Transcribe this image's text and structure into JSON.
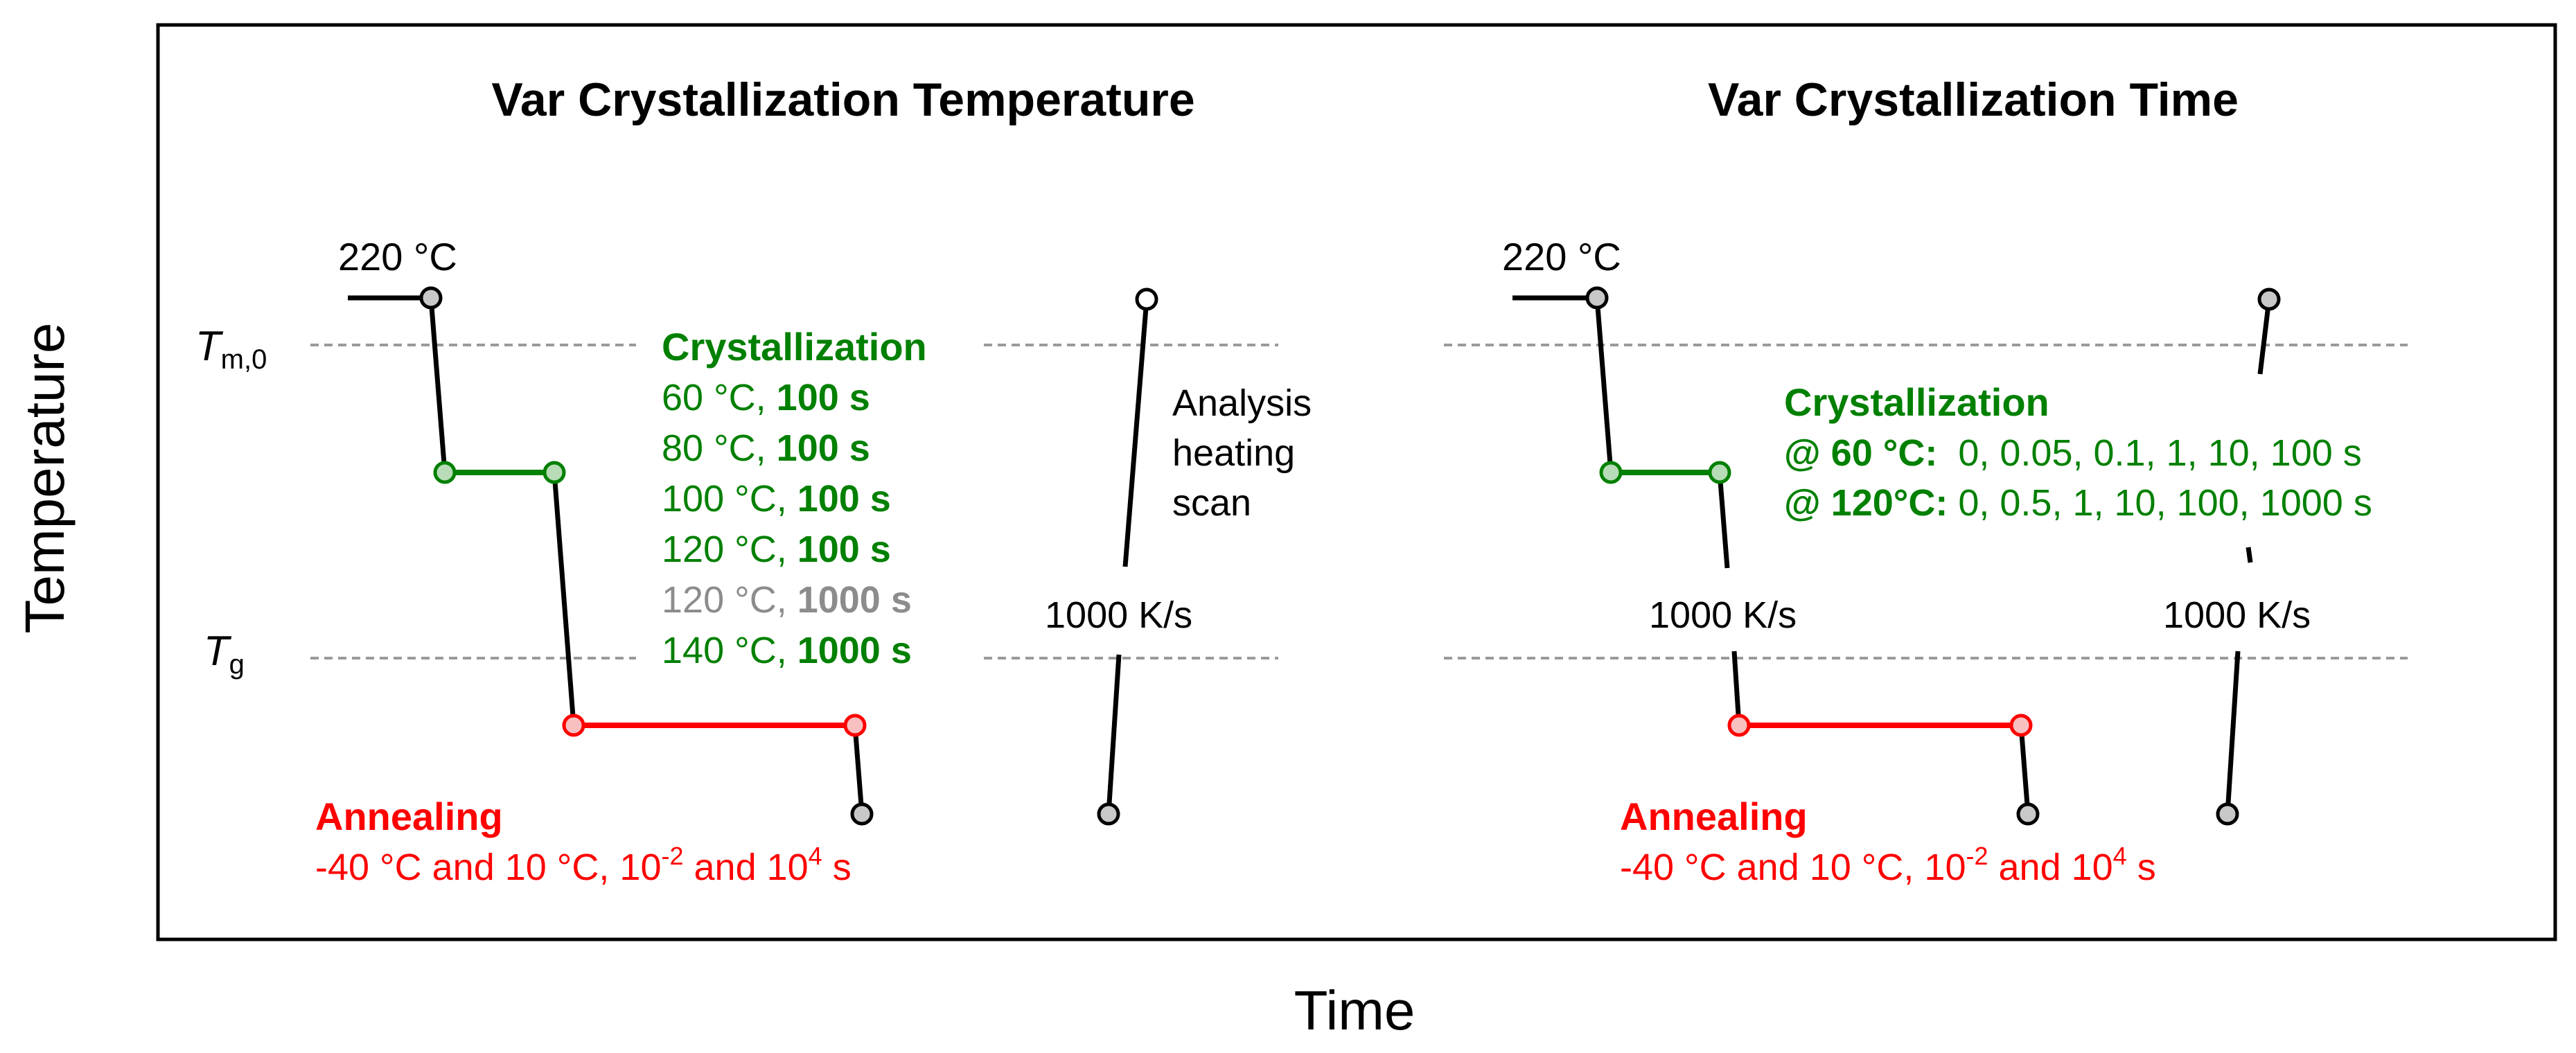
{
  "axes": {
    "y_label": "Temperature",
    "x_label": "Time"
  },
  "colors": {
    "frame": "#000000",
    "crystallization": "#008000",
    "annealing": "#ff0000",
    "highlight_grey": "#8c8c8c",
    "dash": "#9a9a9a"
  },
  "left_panel": {
    "title": "Var Crystallization Temperature",
    "start_temp": "220 °C",
    "tm_label": {
      "main": "T",
      "sub": "m,0"
    },
    "tg_label": {
      "main": "T",
      "sub": "g"
    },
    "crystallization_heading": "Crystallization",
    "crystallization_rows": [
      {
        "temp": "60 °C, ",
        "time": "100 s",
        "color": "#008000"
      },
      {
        "temp": "80 °C, ",
        "time": "100 s",
        "color": "#008000"
      },
      {
        "temp": "100 °C, ",
        "time": "100 s",
        "color": "#008000"
      },
      {
        "temp": "120 °C, ",
        "time": "100 s",
        "color": "#008000"
      },
      {
        "temp": "120 °C, ",
        "time": "1000 s",
        "color": "#8c8c8c"
      },
      {
        "temp": "140 °C, ",
        "time": "1000 s",
        "color": "#008000"
      }
    ],
    "analysis_lines": [
      "Analysis",
      "heating",
      "scan"
    ],
    "rate": "1000 K/s",
    "annealing": {
      "heading": "Annealing",
      "t1": "-40 °C and 10 °C, 10",
      "sup1": "-2",
      "t2": " and 10",
      "sup2": "4",
      "t3": " s"
    }
  },
  "right_panel": {
    "title": "Var Crystallization Time",
    "start_temp": "220 °C",
    "crystallization_heading": "Crystallization",
    "line1": {
      "prefix": "@ ",
      "temp": "60 °C",
      "colon": ":",
      "values": "  0, 0.05, 0.1, 1, 10, 100 s"
    },
    "line2": {
      "prefix": "@ ",
      "temp": "120°C",
      "colon": ":",
      "values": " 0, 0.5, 1, 10, 100, 1000 s"
    },
    "rate_1": "1000 K/s",
    "rate_2": "1000 K/s",
    "annealing": {
      "heading": "Annealing",
      "t1": "-40 °C and 10 °C, 10",
      "sup1": "-2",
      "t2": " and 10",
      "sup2": "4",
      "t3": " s"
    }
  }
}
